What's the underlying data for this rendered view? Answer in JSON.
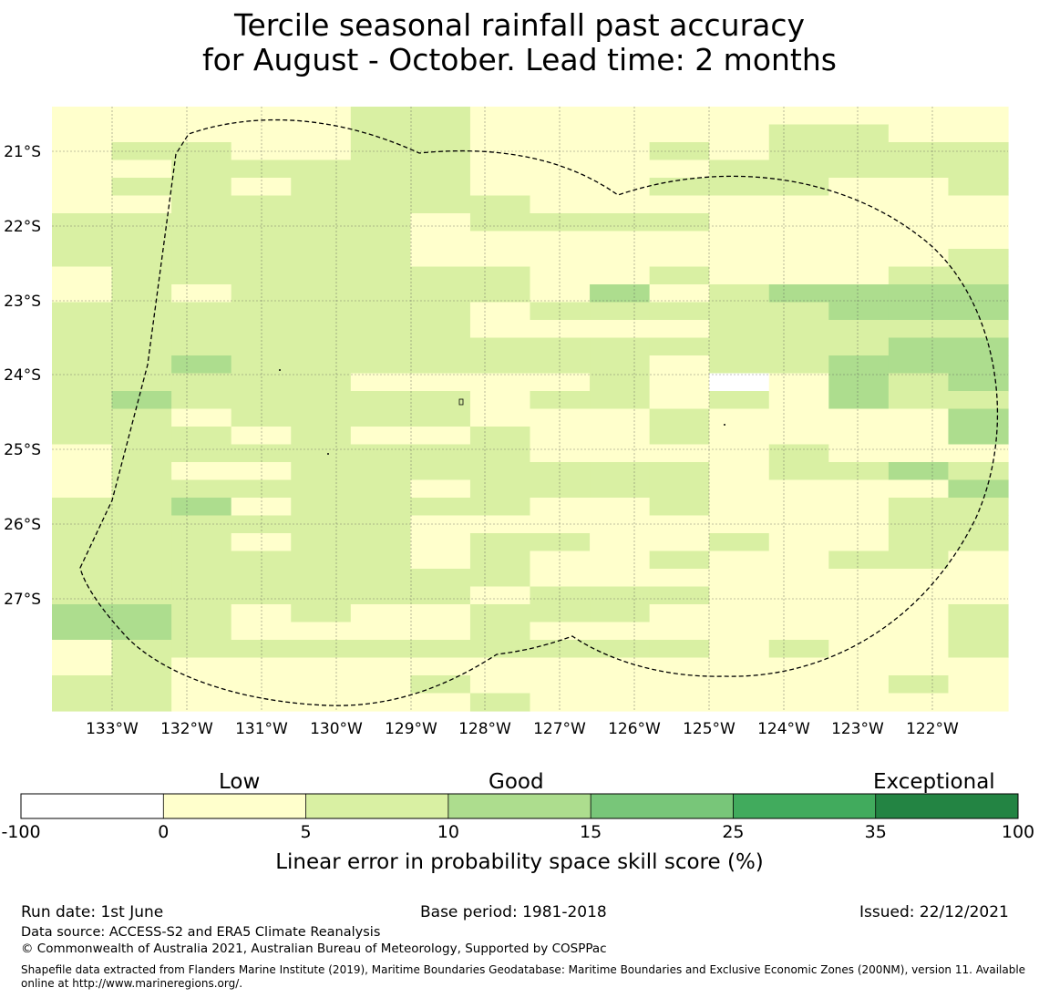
{
  "title": {
    "line1": "Tercile seasonal rainfall past accuracy",
    "line2": "for August - October. Lead time: 2 months"
  },
  "map": {
    "lat_labels": [
      "21°S",
      "22°S",
      "23°S",
      "24°S",
      "25°S",
      "26°S",
      "27°S"
    ],
    "lon_labels": [
      "133°W",
      "132°W",
      "131°W",
      "130°W",
      "129°W",
      "128°W",
      "127°W",
      "126°W",
      "125°W",
      "124°W",
      "123°W",
      "122°W"
    ],
    "grid_legend": "0=white(-100-0), 1=pale yellow(0-5), 2=light green(5-10), 3=green(10-15)",
    "grid_rows": [
      "1111122111111111",
      "1111122111112211",
      "1221122111212222",
      "1122222111122222",
      "1221222111222112",
      "1122222211111111",
      "2222221222211111",
      "2222221111111111",
      "2222221111111112",
      "1222222211211122",
      "1212222213123333",
      "2222222122222333",
      "2222222111122222",
      "2222222222222233",
      "2232222222122333",
      "2222211112101323",
      "2322222122121322",
      "2212222111211113",
      "2221211211211113",
      "1222222211112111",
      "1211222222212232",
      "1222221222211113",
      "2231222211211122",
      "2222221111111122",
      "2221221221121122",
      "2222221211211221",
      "2222222211111111",
      "2222222122211111",
      "3321211222111112",
      "3321111211111112",
      "1222222222212112",
      "1211111111111111",
      "2211112111111121",
      "2211111211111111"
    ]
  },
  "colorbar": {
    "header_labels": {
      "low": "Low",
      "good": "Good",
      "exceptional": "Exceptional"
    },
    "ticks": [
      "-100",
      "0",
      "5",
      "10",
      "15",
      "25",
      "35",
      "100"
    ],
    "colors": [
      "#ffffff",
      "#ffffcc",
      "#d9f0a3",
      "#addd8e",
      "#78c679",
      "#41ab5d",
      "#238443"
    ],
    "xlabel": "Linear error in probability space skill score (%)"
  },
  "footer": {
    "run_date": "Run date: 1st June",
    "base_period": "Base period: 1981-2018",
    "issued": "Issued: 22/12/2021",
    "data_source": "Data source: ACCESS-S2 and ERA5 Climate Reanalysis",
    "copyright": "© Commonwealth of Australia 2021, Australian Bureau of Meteorology, Supported by COSPPac",
    "shapefile_line1": "Shapefile data extracted from Flanders Marine Institute (2019), Maritime Boundaries Geodatabase: Maritime Boundaries and Exclusive Economic Zones (200NM), version 11. Available",
    "shapefile_line2": "online at http://www.marineregions.org/."
  }
}
